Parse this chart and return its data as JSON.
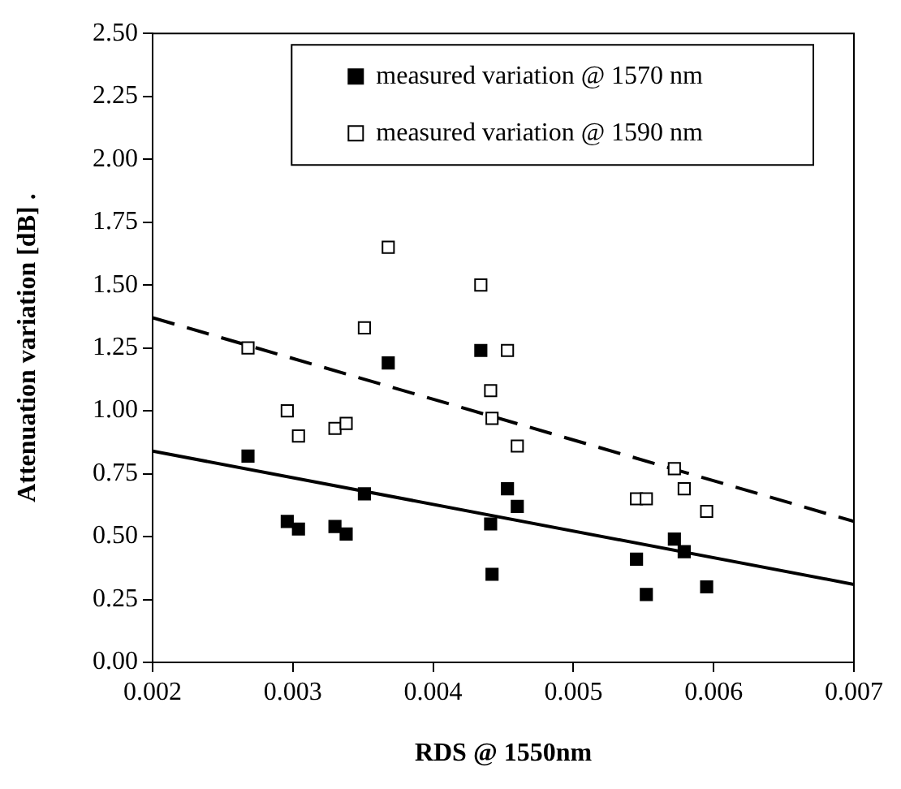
{
  "chart_data": {
    "type": "scatter",
    "xlabel": "RDS @ 1550nm",
    "ylabel": "Attenuation variation [dB] .",
    "xlim": [
      0.002,
      0.007
    ],
    "xticks": [
      0.002,
      0.003,
      0.004,
      0.005,
      0.006,
      0.007
    ],
    "ylim": [
      0,
      2.5
    ],
    "yticks": [
      {
        "value": 0,
        "label": "0.00"
      },
      0.25,
      {
        "value": 0.5,
        "label": "0.50"
      },
      0.75,
      {
        "value": 1,
        "label": "1.00"
      },
      1.25,
      {
        "value": 1.5,
        "label": "1.50"
      },
      1.75,
      {
        "value": 2,
        "label": "2.00"
      },
      2.25,
      {
        "value": 2.5,
        "label": "2.50"
      }
    ],
    "grid": false,
    "legend": "top right",
    "series": [
      {
        "name": "measured variation @ 1570 nm",
        "marker": "square",
        "color": "#000000",
        "x": [
          0.00268,
          0.00296,
          0.00304,
          0.0033,
          0.00338,
          0.00351,
          0.00368,
          0.00434,
          0.00441,
          0.00442,
          0.00453,
          0.0046,
          0.00545,
          0.00552,
          0.00572,
          0.00579,
          0.00595
        ],
        "values": [
          0.82,
          0.56,
          0.53,
          0.54,
          0.51,
          0.67,
          1.19,
          1.24,
          0.55,
          0.35,
          0.69,
          0.62,
          0.41,
          0.27,
          0.49,
          0.44,
          0.3
        ]
      },
      {
        "name": "measured variation @ 1590 nm",
        "marker": "square",
        "color": "#ffffff",
        "x": [
          0.00268,
          0.00296,
          0.00304,
          0.0033,
          0.00338,
          0.00351,
          0.00368,
          0.00434,
          0.00441,
          0.00442,
          0.00453,
          0.0046,
          0.00545,
          0.00552,
          0.00572,
          0.00579,
          0.00595
        ],
        "values": [
          1.25,
          1,
          0.9,
          0.93,
          0.95,
          1.33,
          1.65,
          1.5,
          1.08,
          0.97,
          1.24,
          0.86,
          0.65,
          0.65,
          0.77,
          0.69,
          0.6
        ]
      },
      {
        "type": "line",
        "marker": "none",
        "line_style": "solid",
        "color": "#000000",
        "x": [
          0.002,
          0.007
        ],
        "values": [
          0.84,
          0.31
        ]
      },
      {
        "type": "line",
        "marker": "none",
        "line_style": "dashed",
        "color": "#000000",
        "x": [
          0.002,
          0.007
        ],
        "values": [
          1.37,
          0.56
        ]
      }
    ]
  }
}
